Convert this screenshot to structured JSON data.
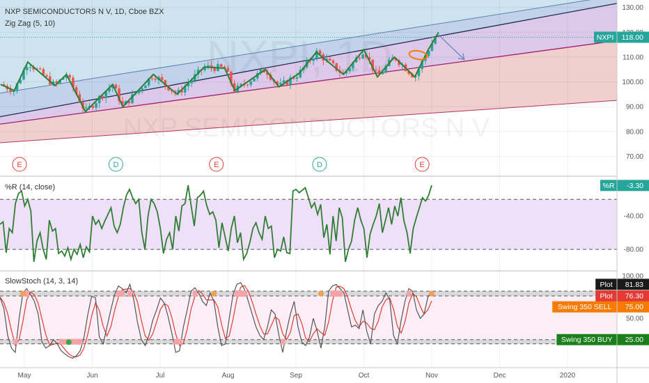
{
  "header": {
    "symbol_line": "NXP SEMICONDUCTORS N V, 1D, Cboe BZX",
    "indicator": "Zig Zag (5, 10)"
  },
  "watermark": {
    "ticker": "NXPI, 1D",
    "name": "NXP SEMICONDUCTORS N V"
  },
  "colors": {
    "bull": "#26a69a",
    "bear": "#ef5350",
    "zigzag": "#2e7d32",
    "wr_line": "#2e7d32",
    "stoch_k": "#555555",
    "stoch_d": "#e53935",
    "price_tag": "#26a69a",
    "sell_tag": "#f57c00",
    "buy_tag": "#1b7f1b",
    "event_e": "#e53935",
    "event_d": "#26a69a"
  },
  "x_axis": {
    "labels": [
      "May",
      "Jun",
      "Jul",
      "Aug",
      "Sep",
      "Oct",
      "Nov",
      "Dec",
      "2020"
    ]
  },
  "events": [
    {
      "letter": "E",
      "month_pos": 0.0
    },
    {
      "letter": "D",
      "month_pos": 1.42
    },
    {
      "letter": "E",
      "month_pos": 2.9
    },
    {
      "letter": "D",
      "month_pos": 4.42
    },
    {
      "letter": "E",
      "month_pos": 5.93
    }
  ],
  "price_panel": {
    "axis_labels": [
      "130.00",
      "120.00",
      "110.00",
      "100.00",
      "90.00",
      "80.00",
      "70.00"
    ],
    "ylim": [
      62,
      133
    ],
    "last_tag": {
      "name": "NXPI",
      "value": "118.00"
    },
    "channel_lines": {
      "upper": [
        [
          -0.35,
          95.5
        ],
        [
          8.2,
          132.5
        ]
      ],
      "mid_top": [
        [
          -0.35,
          86
        ],
        [
          8.7,
          131.5
        ]
      ],
      "mid_bottom": [
        [
          -0.35,
          83
        ],
        [
          8.7,
          116.5
        ]
      ],
      "lower": [
        [
          -0.35,
          75.5
        ],
        [
          8.7,
          92.5
        ]
      ],
      "arrow_start": [
        6.08,
        119.5
      ],
      "arrow_end": [
        6.48,
        109
      ]
    },
    "zigzag": [
      [
        -0.35,
        99
      ],
      [
        -0.15,
        96.5
      ],
      [
        0.05,
        108
      ],
      [
        0.45,
        98.5
      ],
      [
        0.62,
        103
      ],
      [
        0.9,
        88
      ],
      [
        1.3,
        99
      ],
      [
        1.45,
        90
      ],
      [
        1.9,
        103
      ],
      [
        2.25,
        95
      ],
      [
        2.65,
        106
      ],
      [
        2.95,
        105.5
      ],
      [
        3.1,
        96.5
      ],
      [
        3.55,
        105
      ],
      [
        3.75,
        98
      ],
      [
        4.05,
        103.5
      ],
      [
        4.3,
        112
      ],
      [
        4.7,
        103
      ],
      [
        5.0,
        113
      ],
      [
        5.2,
        102
      ],
      [
        5.45,
        110
      ],
      [
        5.75,
        102
      ],
      [
        5.95,
        113
      ],
      [
        6.1,
        120
      ]
    ]
  },
  "wr_panel": {
    "title": "%R (14, close)",
    "axis_labels": [
      "-40.00",
      "-80.00"
    ],
    "levels": [
      -20,
      -80
    ],
    "ylim": [
      -105,
      7
    ],
    "last_tag": {
      "name": "%R",
      "value": "-3.30"
    },
    "values": [
      -50,
      -47,
      -84,
      -55,
      -60,
      -25,
      -13,
      -10,
      -28,
      -20,
      -34,
      -95,
      -70,
      -60,
      -80,
      -92,
      -45,
      -58,
      -55,
      -85,
      -82,
      -88,
      -78,
      -92,
      -80,
      -86,
      -74,
      -90,
      -77,
      -83,
      -40,
      -50,
      -45,
      -55,
      -46,
      -38,
      -30,
      -52,
      -60,
      -50,
      -30,
      -15,
      -8,
      -18,
      -25,
      -20,
      -60,
      -80,
      -40,
      -20,
      -25,
      -35,
      -55,
      -85,
      -68,
      -60,
      -80,
      -40,
      -58,
      -28,
      -25,
      -3,
      -28,
      -52,
      -18,
      -15,
      -10,
      -27,
      -38,
      -35,
      -45,
      -78,
      -48,
      -65,
      -82,
      -55,
      -40,
      -72,
      -60,
      -92,
      -85,
      -72,
      -55,
      -48,
      -60,
      -68,
      -40,
      -55,
      -52,
      -90,
      -80,
      -82,
      -65,
      -84,
      -85,
      -10,
      -8,
      -12,
      -9,
      -6,
      -18,
      -30,
      -24,
      -38,
      -26,
      -66,
      -50,
      -86,
      -40,
      -70,
      -30,
      -42,
      -95,
      -80,
      -70,
      -45,
      -30,
      -45,
      -55,
      -90,
      -62,
      -50,
      -40,
      -25,
      -60,
      -45,
      -30,
      -50,
      -28,
      -40,
      -18,
      -46,
      -60,
      -85,
      -55,
      -42,
      -30,
      -18,
      -22,
      -15,
      -3
    ]
  },
  "stoch_panel": {
    "title": "SlowStoch (14, 3, 14)",
    "axis_labels": [
      "100.00",
      "50.00"
    ],
    "levels": [
      82,
      76.3,
      25,
      20
    ],
    "ylim": [
      -8,
      105
    ],
    "tags": [
      {
        "name": "Plot",
        "value": "81.83",
        "color": "#1a1a1a"
      },
      {
        "name": "Plot",
        "value": "76.30",
        "color": "#e53935"
      },
      {
        "name": "Swing 350 SELL",
        "value": "75.00",
        "color": "#f57c00"
      },
      {
        "name": "Swing 350 BUY",
        "value": "25.00",
        "color": "#1b7f1b"
      }
    ],
    "k": [
      75,
      62,
      30,
      15,
      10,
      50,
      80,
      85,
      78,
      70,
      55,
      22,
      15,
      18,
      25,
      20,
      12,
      8,
      5,
      3,
      6,
      12,
      28,
      55,
      76,
      74,
      28,
      20,
      40,
      60,
      78,
      88,
      85,
      80,
      90,
      72,
      45,
      25,
      18,
      30,
      48,
      60,
      74,
      68,
      52,
      32,
      10,
      12,
      40,
      60,
      82,
      86,
      80,
      70,
      65,
      80,
      70,
      40,
      18,
      20,
      50,
      78,
      90,
      92,
      84,
      70,
      55,
      40,
      30,
      25,
      40,
      60,
      55,
      30,
      10,
      35,
      55,
      70,
      40,
      22,
      18,
      28,
      50,
      35,
      15,
      40,
      82,
      88,
      90,
      85,
      80,
      60,
      40,
      42,
      38,
      60,
      35,
      20,
      55,
      65,
      70,
      80,
      72,
      30,
      20,
      48,
      70,
      85,
      82,
      60,
      50,
      55,
      75,
      82
    ]
  }
}
